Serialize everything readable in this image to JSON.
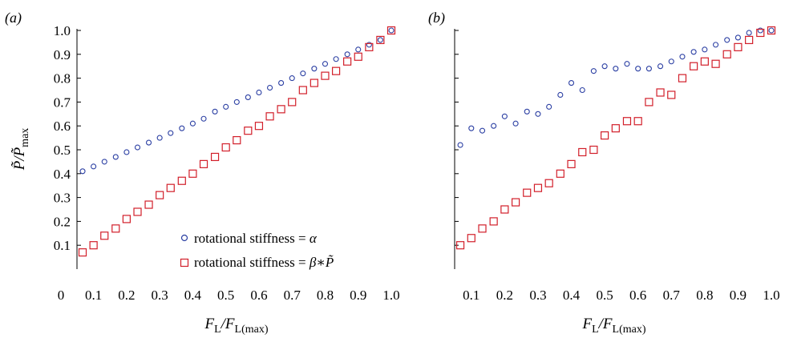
{
  "chart_data": [
    {
      "panel": "(a)",
      "type": "scatter",
      "xlim": [
        0.05,
        1.0
      ],
      "ylim": [
        0.0,
        1.0
      ],
      "xticks": [
        "0.1",
        "0.2",
        "0.3",
        "0.4",
        "0.5",
        "0.6",
        "0.7",
        "0.8",
        "0.9",
        "1.0"
      ],
      "yticks": [
        "0",
        "0.1",
        "0.2",
        "0.3",
        "0.4",
        "0.5",
        "0.6",
        "0.7",
        "0.8",
        "0.9",
        "1.0"
      ],
      "ylabel_main": "P̃/P̃",
      "ylabel_sub": "max",
      "xlabel_main1": "F",
      "xlabel_sub1": "L",
      "xlabel_main2": "/F",
      "xlabel_sub2": "L(max)",
      "series": [
        {
          "name": "rotational stiffness = α",
          "marker": "circle",
          "color": "#2b3fa3",
          "x": [
            0.067,
            0.1,
            0.133,
            0.167,
            0.2,
            0.233,
            0.267,
            0.3,
            0.333,
            0.367,
            0.4,
            0.433,
            0.467,
            0.5,
            0.533,
            0.567,
            0.6,
            0.633,
            0.667,
            0.7,
            0.733,
            0.767,
            0.8,
            0.833,
            0.867,
            0.9,
            0.933,
            0.967,
            1.0
          ],
          "y": [
            0.41,
            0.43,
            0.45,
            0.47,
            0.49,
            0.51,
            0.53,
            0.55,
            0.57,
            0.59,
            0.61,
            0.63,
            0.66,
            0.68,
            0.7,
            0.72,
            0.74,
            0.76,
            0.78,
            0.8,
            0.82,
            0.84,
            0.86,
            0.88,
            0.9,
            0.92,
            0.94,
            0.96,
            1.0
          ]
        },
        {
          "name": "rotational stiffness = β∗P̃",
          "marker": "square",
          "color": "#d21f2a",
          "x": [
            0.067,
            0.1,
            0.133,
            0.167,
            0.2,
            0.233,
            0.267,
            0.3,
            0.333,
            0.367,
            0.4,
            0.433,
            0.467,
            0.5,
            0.533,
            0.567,
            0.6,
            0.633,
            0.667,
            0.7,
            0.733,
            0.767,
            0.8,
            0.833,
            0.867,
            0.9,
            0.933,
            0.967,
            1.0
          ],
          "y": [
            0.07,
            0.1,
            0.14,
            0.17,
            0.21,
            0.24,
            0.27,
            0.31,
            0.34,
            0.37,
            0.4,
            0.44,
            0.47,
            0.51,
            0.54,
            0.58,
            0.6,
            0.64,
            0.67,
            0.7,
            0.75,
            0.78,
            0.81,
            0.83,
            0.87,
            0.89,
            0.93,
            0.96,
            1.0
          ]
        }
      ],
      "legend": {
        "placement": "lower-right",
        "circle_label": "rotational stiffness = ",
        "circle_symbol": "α",
        "square_label": "rotational stiffness = ",
        "square_symbol": "β∗P̃"
      }
    },
    {
      "panel": "(b)",
      "type": "scatter",
      "xlim": [
        0.05,
        1.0
      ],
      "ylim": [
        0.0,
        1.0
      ],
      "xticks": [
        "0.1",
        "0.2",
        "0.3",
        "0.4",
        "0.5",
        "0.6",
        "0.7",
        "0.8",
        "0.9",
        "1.0"
      ],
      "xlabel_main1": "F",
      "xlabel_sub1": "L",
      "xlabel_main2": "/F",
      "xlabel_sub2": "L(max)",
      "series": [
        {
          "name": "rotational stiffness = α",
          "marker": "circle",
          "color": "#2b3fa3",
          "x": [
            0.067,
            0.1,
            0.133,
            0.167,
            0.2,
            0.233,
            0.267,
            0.3,
            0.333,
            0.367,
            0.4,
            0.433,
            0.467,
            0.5,
            0.533,
            0.567,
            0.6,
            0.633,
            0.667,
            0.7,
            0.733,
            0.767,
            0.8,
            0.833,
            0.867,
            0.9,
            0.933,
            0.967,
            1.0
          ],
          "y": [
            0.52,
            0.59,
            0.58,
            0.6,
            0.64,
            0.61,
            0.66,
            0.65,
            0.68,
            0.73,
            0.78,
            0.75,
            0.83,
            0.85,
            0.84,
            0.86,
            0.84,
            0.84,
            0.85,
            0.87,
            0.89,
            0.91,
            0.92,
            0.94,
            0.96,
            0.97,
            0.99,
            1.0,
            1.0
          ]
        },
        {
          "name": "rotational stiffness = β∗P̃",
          "marker": "square",
          "color": "#d21f2a",
          "x": [
            0.067,
            0.1,
            0.133,
            0.167,
            0.2,
            0.233,
            0.267,
            0.3,
            0.333,
            0.367,
            0.4,
            0.433,
            0.467,
            0.5,
            0.533,
            0.567,
            0.6,
            0.633,
            0.667,
            0.7,
            0.733,
            0.767,
            0.8,
            0.833,
            0.867,
            0.9,
            0.933,
            0.967,
            1.0
          ],
          "y": [
            0.1,
            0.13,
            0.17,
            0.2,
            0.25,
            0.28,
            0.32,
            0.34,
            0.36,
            0.4,
            0.44,
            0.49,
            0.5,
            0.56,
            0.59,
            0.62,
            0.62,
            0.7,
            0.74,
            0.73,
            0.8,
            0.85,
            0.87,
            0.86,
            0.9,
            0.93,
            0.96,
            0.99,
            1.0
          ]
        }
      ]
    }
  ]
}
